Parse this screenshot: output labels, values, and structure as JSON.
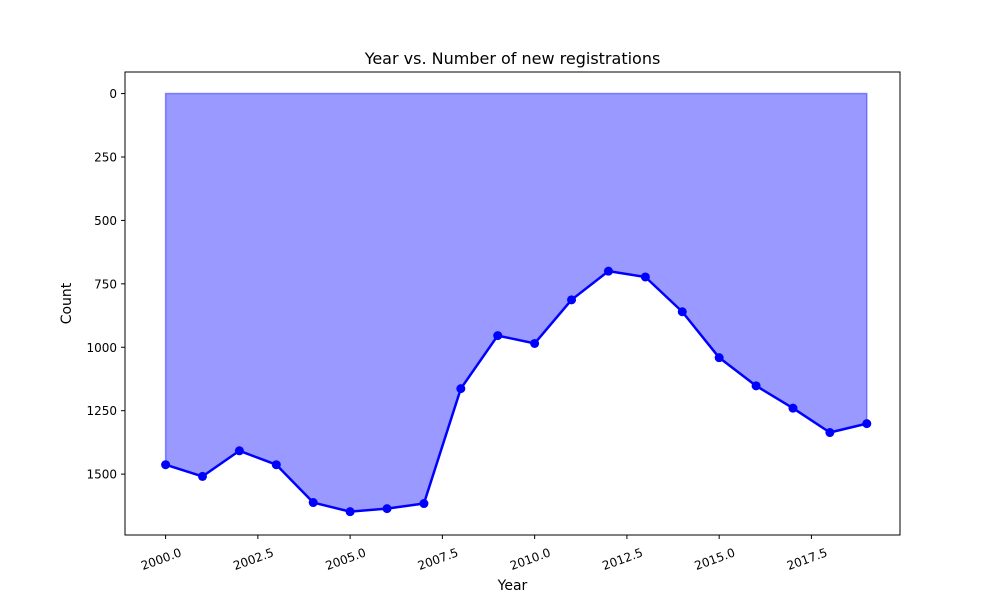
{
  "chart_data": {
    "type": "area",
    "title": "Year vs. Number of new registrations",
    "xlabel": "Year",
    "ylabel": "Count",
    "xlim": [
      1998.9,
      2019.9
    ],
    "ylim": [
      1740,
      -85
    ],
    "y_inverted": true,
    "grid": false,
    "x_ticks": [
      2000.0,
      2002.5,
      2005.0,
      2007.5,
      2010.0,
      2012.5,
      2015.0,
      2017.5
    ],
    "x_tick_labels": [
      "2000.0",
      "2002.5",
      "2005.0",
      "2007.5",
      "2010.0",
      "2012.5",
      "2015.0",
      "2017.5"
    ],
    "y_ticks": [
      0,
      250,
      500,
      750,
      1000,
      1250,
      1500
    ],
    "y_tick_labels": [
      "0",
      "250",
      "500",
      "750",
      "1000",
      "1250",
      "1500"
    ],
    "x": [
      2000,
      2001,
      2002,
      2003,
      2004,
      2005,
      2006,
      2007,
      2008,
      2009,
      2010,
      2011,
      2012,
      2013,
      2014,
      2015,
      2016,
      2017,
      2018,
      2019
    ],
    "series": [
      {
        "values": [
          1463,
          1509,
          1408,
          1463,
          1612,
          1648,
          1636,
          1616,
          1163,
          954,
          985,
          813,
          700,
          723,
          860,
          1041,
          1152,
          1240,
          1336,
          1301
        ],
        "line_color": "#0000ff",
        "fill_color": "#0000ff",
        "fill_baseline": 0
      }
    ]
  }
}
